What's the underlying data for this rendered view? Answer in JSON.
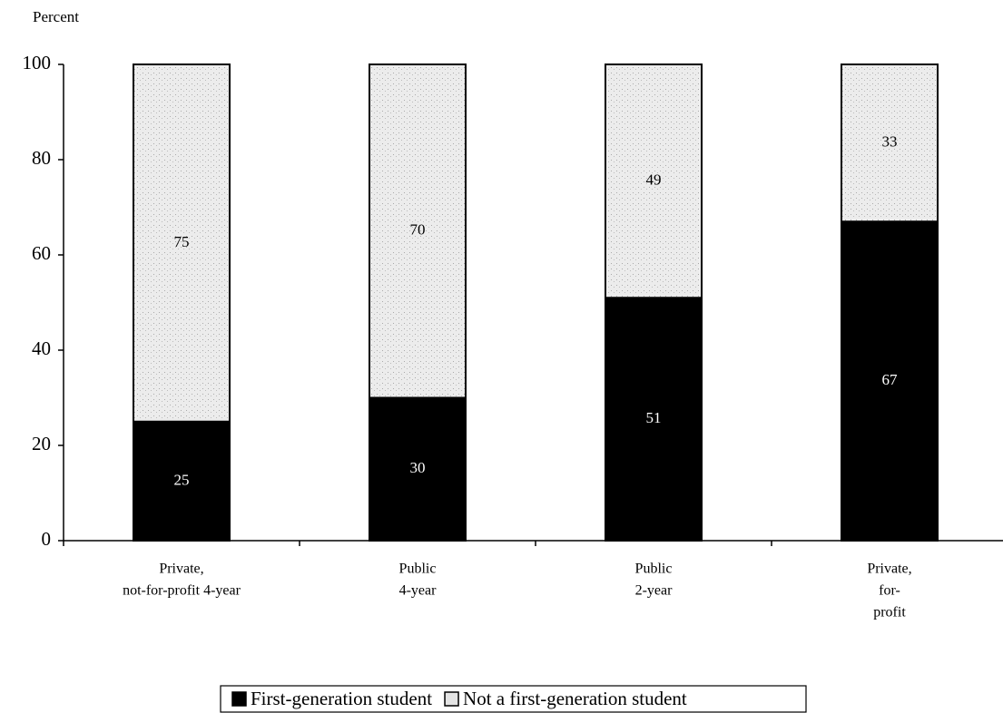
{
  "chart_data": {
    "type": "stacked_bar",
    "y_label": "Percent",
    "categories": [
      [
        "Private,",
        "not-for-profit 4-year"
      ],
      [
        "Public",
        "4-year"
      ],
      [
        "Public",
        "2-year"
      ],
      [
        "Private,",
        "for-",
        "profit"
      ]
    ],
    "series": [
      {
        "name": "First-generation student",
        "color": "#000000",
        "label_color": "#ffffff",
        "values": [
          25,
          30,
          51,
          67
        ]
      },
      {
        "name": "Not a first-generation student",
        "color": "#e4e4e4",
        "label_color": "#000000",
        "values": [
          75,
          70,
          49,
          33
        ]
      }
    ],
    "ylim": [
      0,
      100
    ],
    "yticks": [
      0,
      20,
      40,
      60,
      80,
      100
    ]
  }
}
